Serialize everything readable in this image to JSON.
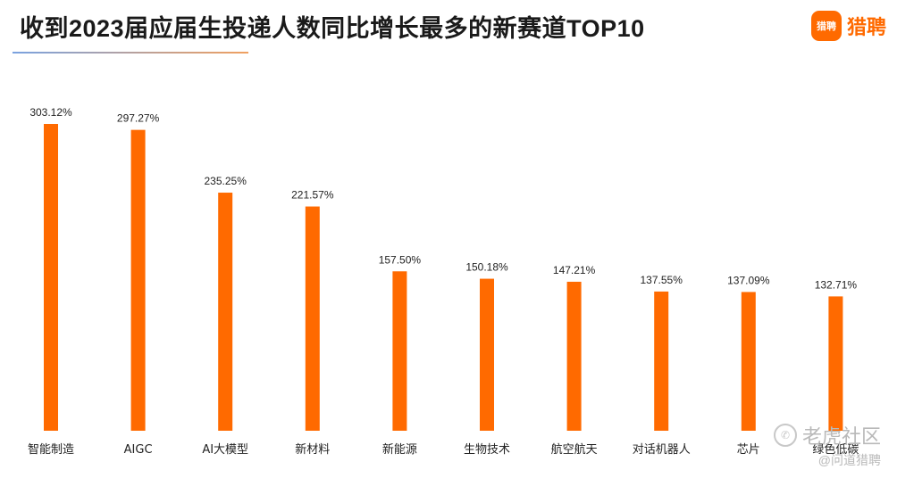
{
  "header": {
    "title": "收到2023届应届生投递人数同比增长最多的新赛道TOP10",
    "logo_badge": "猎聘",
    "logo_text": "猎聘"
  },
  "watermark": {
    "line1": "老虎社区",
    "line2": "@问道猎聘"
  },
  "colors": {
    "bar": "#ff6a00",
    "accent": "#ff6a00"
  },
  "chart_data": {
    "type": "bar",
    "categories": [
      "智能制造",
      "AIGC",
      "AI大模型",
      "新材料",
      "新能源",
      "生物技术",
      "航空航天",
      "对话机器人",
      "芯片",
      "绿色低碳"
    ],
    "values": [
      303.12,
      297.27,
      235.25,
      221.57,
      157.5,
      150.18,
      147.21,
      137.55,
      137.09,
      132.71
    ],
    "labels": [
      "303.12%",
      "297.27%",
      "235.25%",
      "221.57%",
      "157.50%",
      "150.18%",
      "147.21%",
      "137.55%",
      "137.09%",
      "132.71%"
    ],
    "unit": "%",
    "ylim": [
      0,
      350
    ],
    "grid": false,
    "legend": "none"
  }
}
